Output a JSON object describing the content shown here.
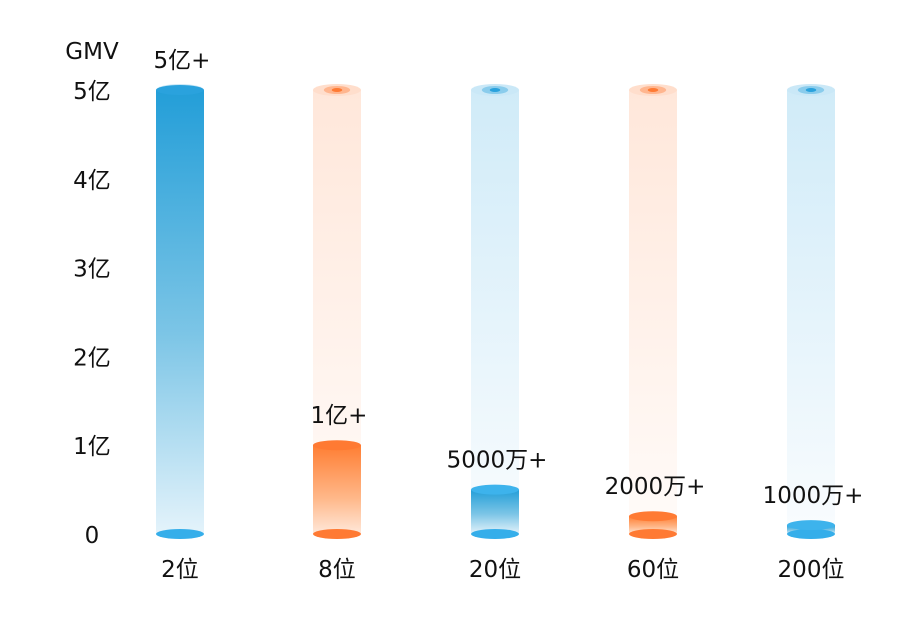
{
  "chart_data": {
    "type": "bar",
    "ylabel": "GMV",
    "ylim": [
      0,
      5
    ],
    "yticks": [
      {
        "value": 0,
        "label": "0"
      },
      {
        "value": 1,
        "label": "1亿"
      },
      {
        "value": 2,
        "label": "2亿"
      },
      {
        "value": 3,
        "label": "3亿"
      },
      {
        "value": 4,
        "label": "4亿"
      },
      {
        "value": 5,
        "label": "5亿"
      }
    ],
    "categories": [
      "2位",
      "8位",
      "20位",
      "60位",
      "200位"
    ],
    "values": [
      5,
      1,
      0.5,
      0.2,
      0.1
    ],
    "data_labels": [
      "5亿+",
      "1亿+",
      "5000万+",
      "2000万+",
      "1000万+"
    ],
    "bar_colors": [
      "#2aa2dd",
      "#ff7a33",
      "#2aa2dd",
      "#ff7a33",
      "#2aa2dd"
    ],
    "grid": false,
    "legend": "none"
  }
}
